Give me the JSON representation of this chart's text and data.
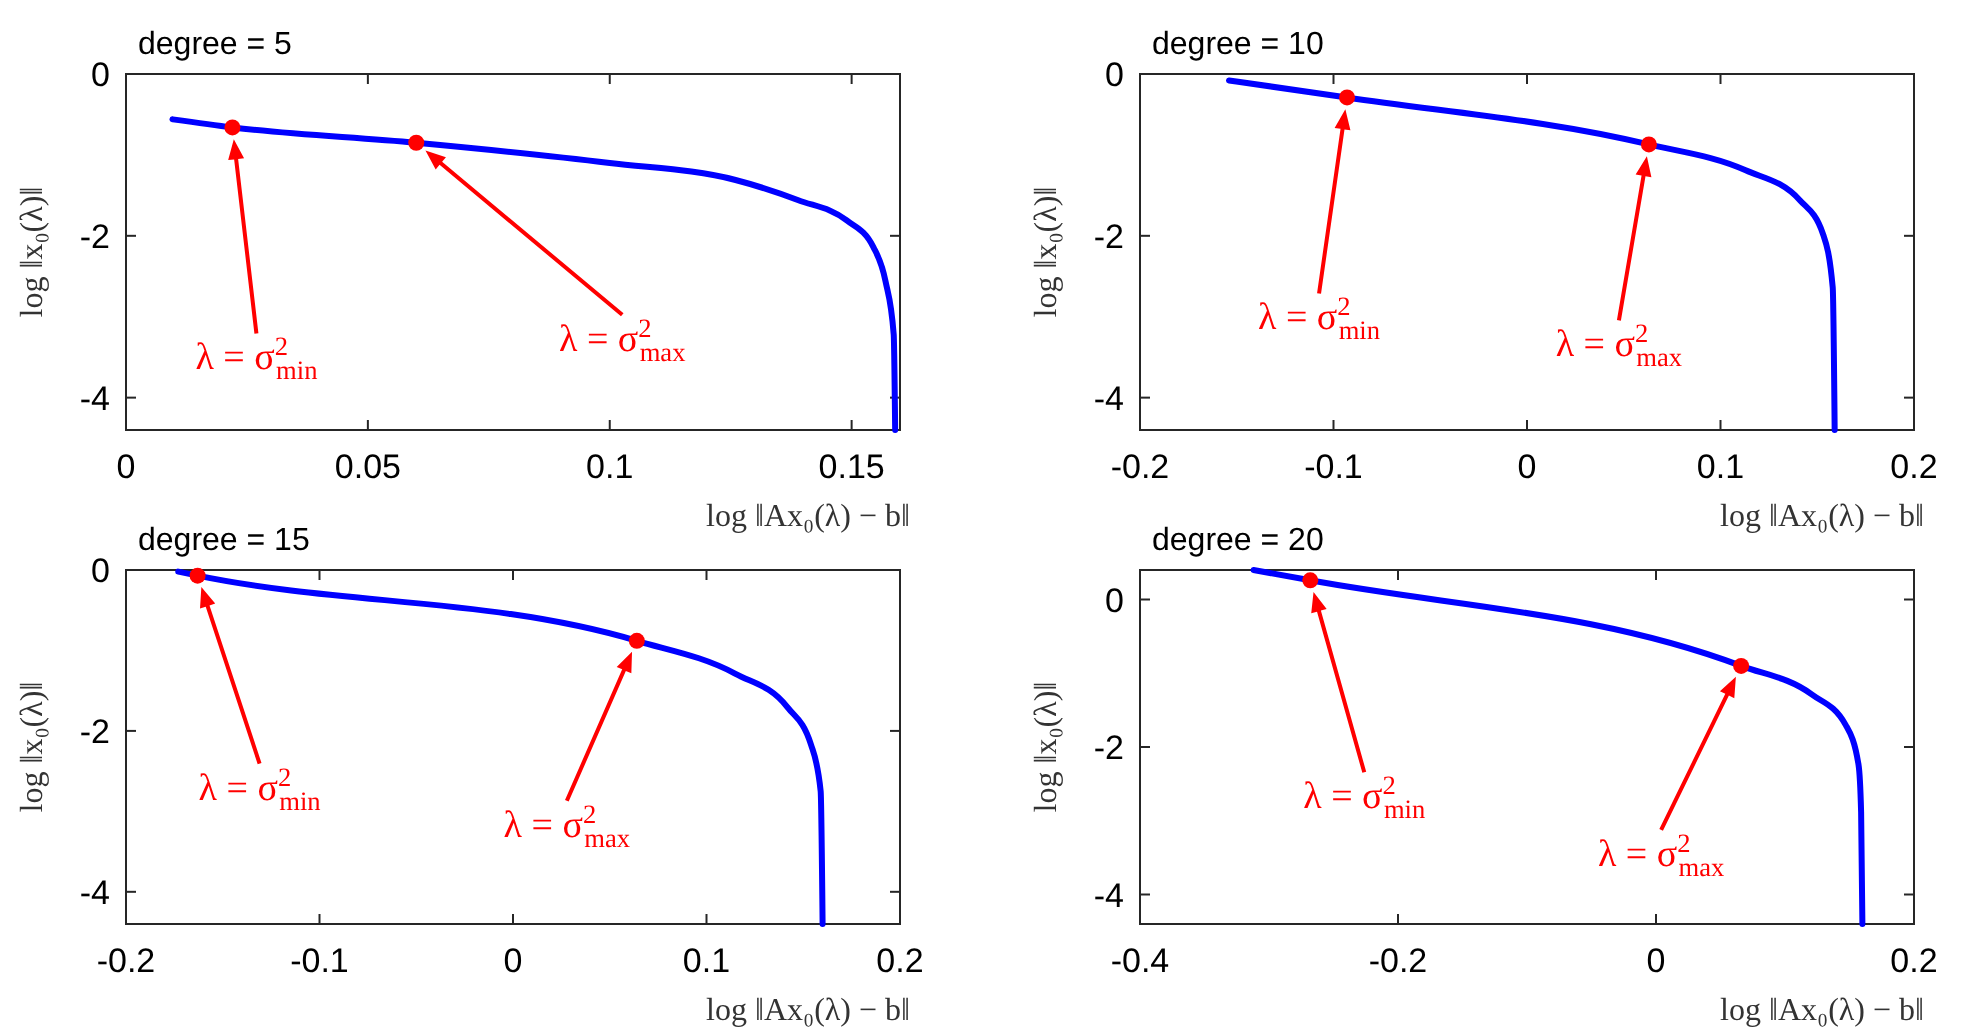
{
  "chart_data": [
    {
      "type": "line",
      "title": "degree = 5",
      "xlabel": "log ‖Ax₀(λ) − b‖",
      "ylabel": "log ‖x₀(λ)‖",
      "xlim": [
        0,
        0.16
      ],
      "xticks": [
        0,
        0.05,
        0.1,
        0.15
      ],
      "ylim": [
        -4.4,
        0
      ],
      "yticks": [
        -4,
        -2,
        0
      ],
      "series": [
        {
          "type": "line",
          "color": "#0000ff",
          "x": [
            0.0096,
            0.022,
            0.06,
            0.1,
            0.126,
            0.139,
            0.149,
            0.1545,
            0.157,
            0.1587,
            0.159
          ],
          "values": [
            -0.56,
            -0.66,
            -0.85,
            -1.1,
            -1.31,
            -1.56,
            -1.81,
            -2.14,
            -2.56,
            -3.22,
            -4.4
          ]
        },
        {
          "type": "scatter",
          "color": "#ff0000",
          "marker": "circle",
          "x": [
            0.022,
            0.06
          ],
          "values": [
            -0.66,
            -0.85
          ]
        }
      ],
      "annotations": [
        "λ = σ$^{2}$$_{min}$",
        "λ = σ$^{2}$$_{max}$"
      ]
    },
    {
      "type": "line",
      "title": "degree = 10",
      "xlabel": "log ‖Ax₀(λ) − b‖",
      "ylabel": "log ‖x₀(λ)‖",
      "xlim": [
        -0.2,
        0.2
      ],
      "xticks": [
        -0.2,
        -0.1,
        0,
        0.1,
        0.2
      ],
      "ylim": [
        -4.4,
        0
      ],
      "yticks": [
        -4,
        -2,
        0
      ],
      "series": [
        {
          "type": "line",
          "color": "#0000ff",
          "x": [
            -0.154,
            -0.093,
            0.063,
            0.113,
            0.141,
            0.153,
            0.158,
            0.159
          ],
          "values": [
            -0.08,
            -0.29,
            -0.87,
            -1.19,
            -1.56,
            -1.98,
            -2.64,
            -4.4
          ]
        },
        {
          "type": "scatter",
          "color": "#ff0000",
          "marker": "circle",
          "x": [
            -0.093,
            0.063
          ],
          "values": [
            -0.29,
            -0.87
          ]
        }
      ],
      "annotations": [
        "λ = σ$^{2}$$_{min}$",
        "λ = σ$^{2}$$_{max}$"
      ]
    },
    {
      "type": "line",
      "title": "degree = 15",
      "xlabel": "log ‖Ax₀(λ) − b‖",
      "ylabel": "log ‖x₀(λ)‖",
      "xlim": [
        -0.2,
        0.2
      ],
      "xticks": [
        -0.2,
        -0.1,
        0,
        0.1,
        0.2
      ],
      "ylim": [
        -4.4,
        0
      ],
      "yticks": [
        -4,
        -2,
        0
      ],
      "series": [
        {
          "type": "line",
          "color": "#0000ff",
          "x": [
            -0.173,
            -0.163,
            0.064,
            0.115,
            0.142,
            0.154,
            0.159,
            0.16
          ],
          "values": [
            -0.02,
            -0.07,
            -0.88,
            -1.29,
            -1.71,
            -2.17,
            -2.75,
            -4.4
          ]
        },
        {
          "type": "scatter",
          "color": "#ff0000",
          "marker": "circle",
          "x": [
            -0.163,
            0.064
          ],
          "values": [
            -0.07,
            -0.88
          ]
        }
      ],
      "annotations": [
        "λ = σ$^{2}$$_{min}$",
        "λ = σ$^{2}$$_{max}$"
      ]
    },
    {
      "type": "line",
      "title": "degree = 20",
      "xlabel": "log ‖Ax₀(λ) − b‖",
      "ylabel": "log ‖x₀(λ)‖",
      "xlim": [
        -0.4,
        0.2
      ],
      "xticks": [
        -0.4,
        -0.2,
        0,
        0.2
      ],
      "ylim": [
        -4.4,
        0.4
      ],
      "yticks": [
        -4,
        -2,
        0
      ],
      "series": [
        {
          "type": "line",
          "color": "#0000ff",
          "x": [
            -0.312,
            -0.268,
            0.066,
            0.121,
            0.147,
            0.157,
            0.159,
            0.16
          ],
          "values": [
            0.4,
            0.26,
            -0.9,
            -1.29,
            -1.7,
            -2.24,
            -2.88,
            -4.4
          ]
        },
        {
          "type": "scatter",
          "color": "#ff0000",
          "marker": "circle",
          "x": [
            -0.268,
            0.066
          ],
          "values": [
            0.26,
            -0.9
          ]
        }
      ],
      "annotations": [
        "λ = σ$^{2}$$_{min}$",
        "λ = σ$^{2}$$_{max}$"
      ]
    }
  ]
}
